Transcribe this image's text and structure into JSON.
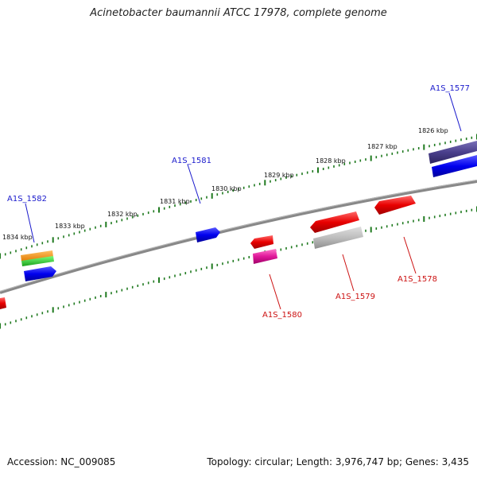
{
  "title": "Acinetobacter baumannii ATCC 17978, complete genome",
  "footer": {
    "accession": "Accession: NC_009085",
    "summary": "Topology: circular; Length: 3,976,747 bp; Genes: 3,435"
  },
  "colors": {
    "backbone": "#7a7a7a",
    "ticks": "#1f7a1f",
    "forward_label": "#1a1acc",
    "reverse_label": "#cc1111"
  },
  "kbp_labels": [
    "1826 kbp",
    "1827 kbp",
    "1828 kbp",
    "1829 kbp",
    "1830 kbp",
    "1831 kbp",
    "1832 kbp",
    "1833 kbp",
    "1834 kbp"
  ],
  "genes": {
    "forward": [
      "A1S_1577",
      "A1S_1581",
      "A1S_1582"
    ],
    "reverse": [
      "A1S_1578",
      "A1S_1579",
      "A1S_1580"
    ]
  }
}
